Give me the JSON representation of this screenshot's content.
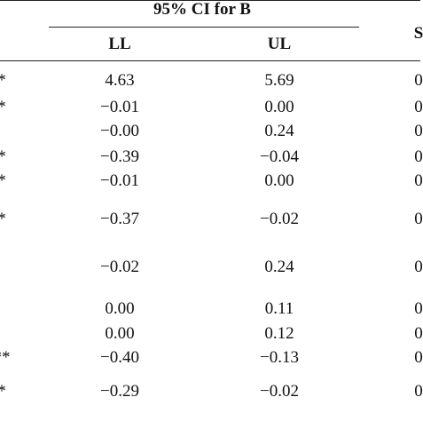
{
  "header": {
    "title": "95% CI for B",
    "columns": [
      "LL",
      "UL"
    ],
    "right": "S"
  },
  "table": {
    "rows": [
      {
        "left": "*",
        "ll": "4.63",
        "ul": "5.69",
        "right": "0"
      },
      {
        "left": "*",
        "ll": "−0.01",
        "ul": "0.00",
        "right": "0"
      },
      {
        "ll": "−0.00",
        "ul": "0.24",
        "right": "0"
      },
      {
        "left": "*",
        "ll": "−0.39",
        "ul": "−0.04",
        "right": "0"
      },
      {
        "left": "*",
        "ll": "−0.01",
        "ul": "0.00",
        "right": "0"
      },
      {
        "left": "*",
        "ll": "−0.37",
        "ul": "−0.02",
        "right": "0"
      },
      {
        "ll": "−0.02",
        "ul": "0.24",
        "right": "0"
      },
      {
        "ll": "0.00",
        "ul": "0.11",
        "right": "0"
      },
      {
        "ll": "0.00",
        "ul": "0.12",
        "right": "0"
      },
      {
        "left": "**",
        "ll": "−0.40",
        "ul": "−0.13",
        "right": "0"
      },
      {
        "left": "*",
        "ll": "−0.29",
        "ul": "−0.02",
        "right": "0"
      }
    ]
  }
}
